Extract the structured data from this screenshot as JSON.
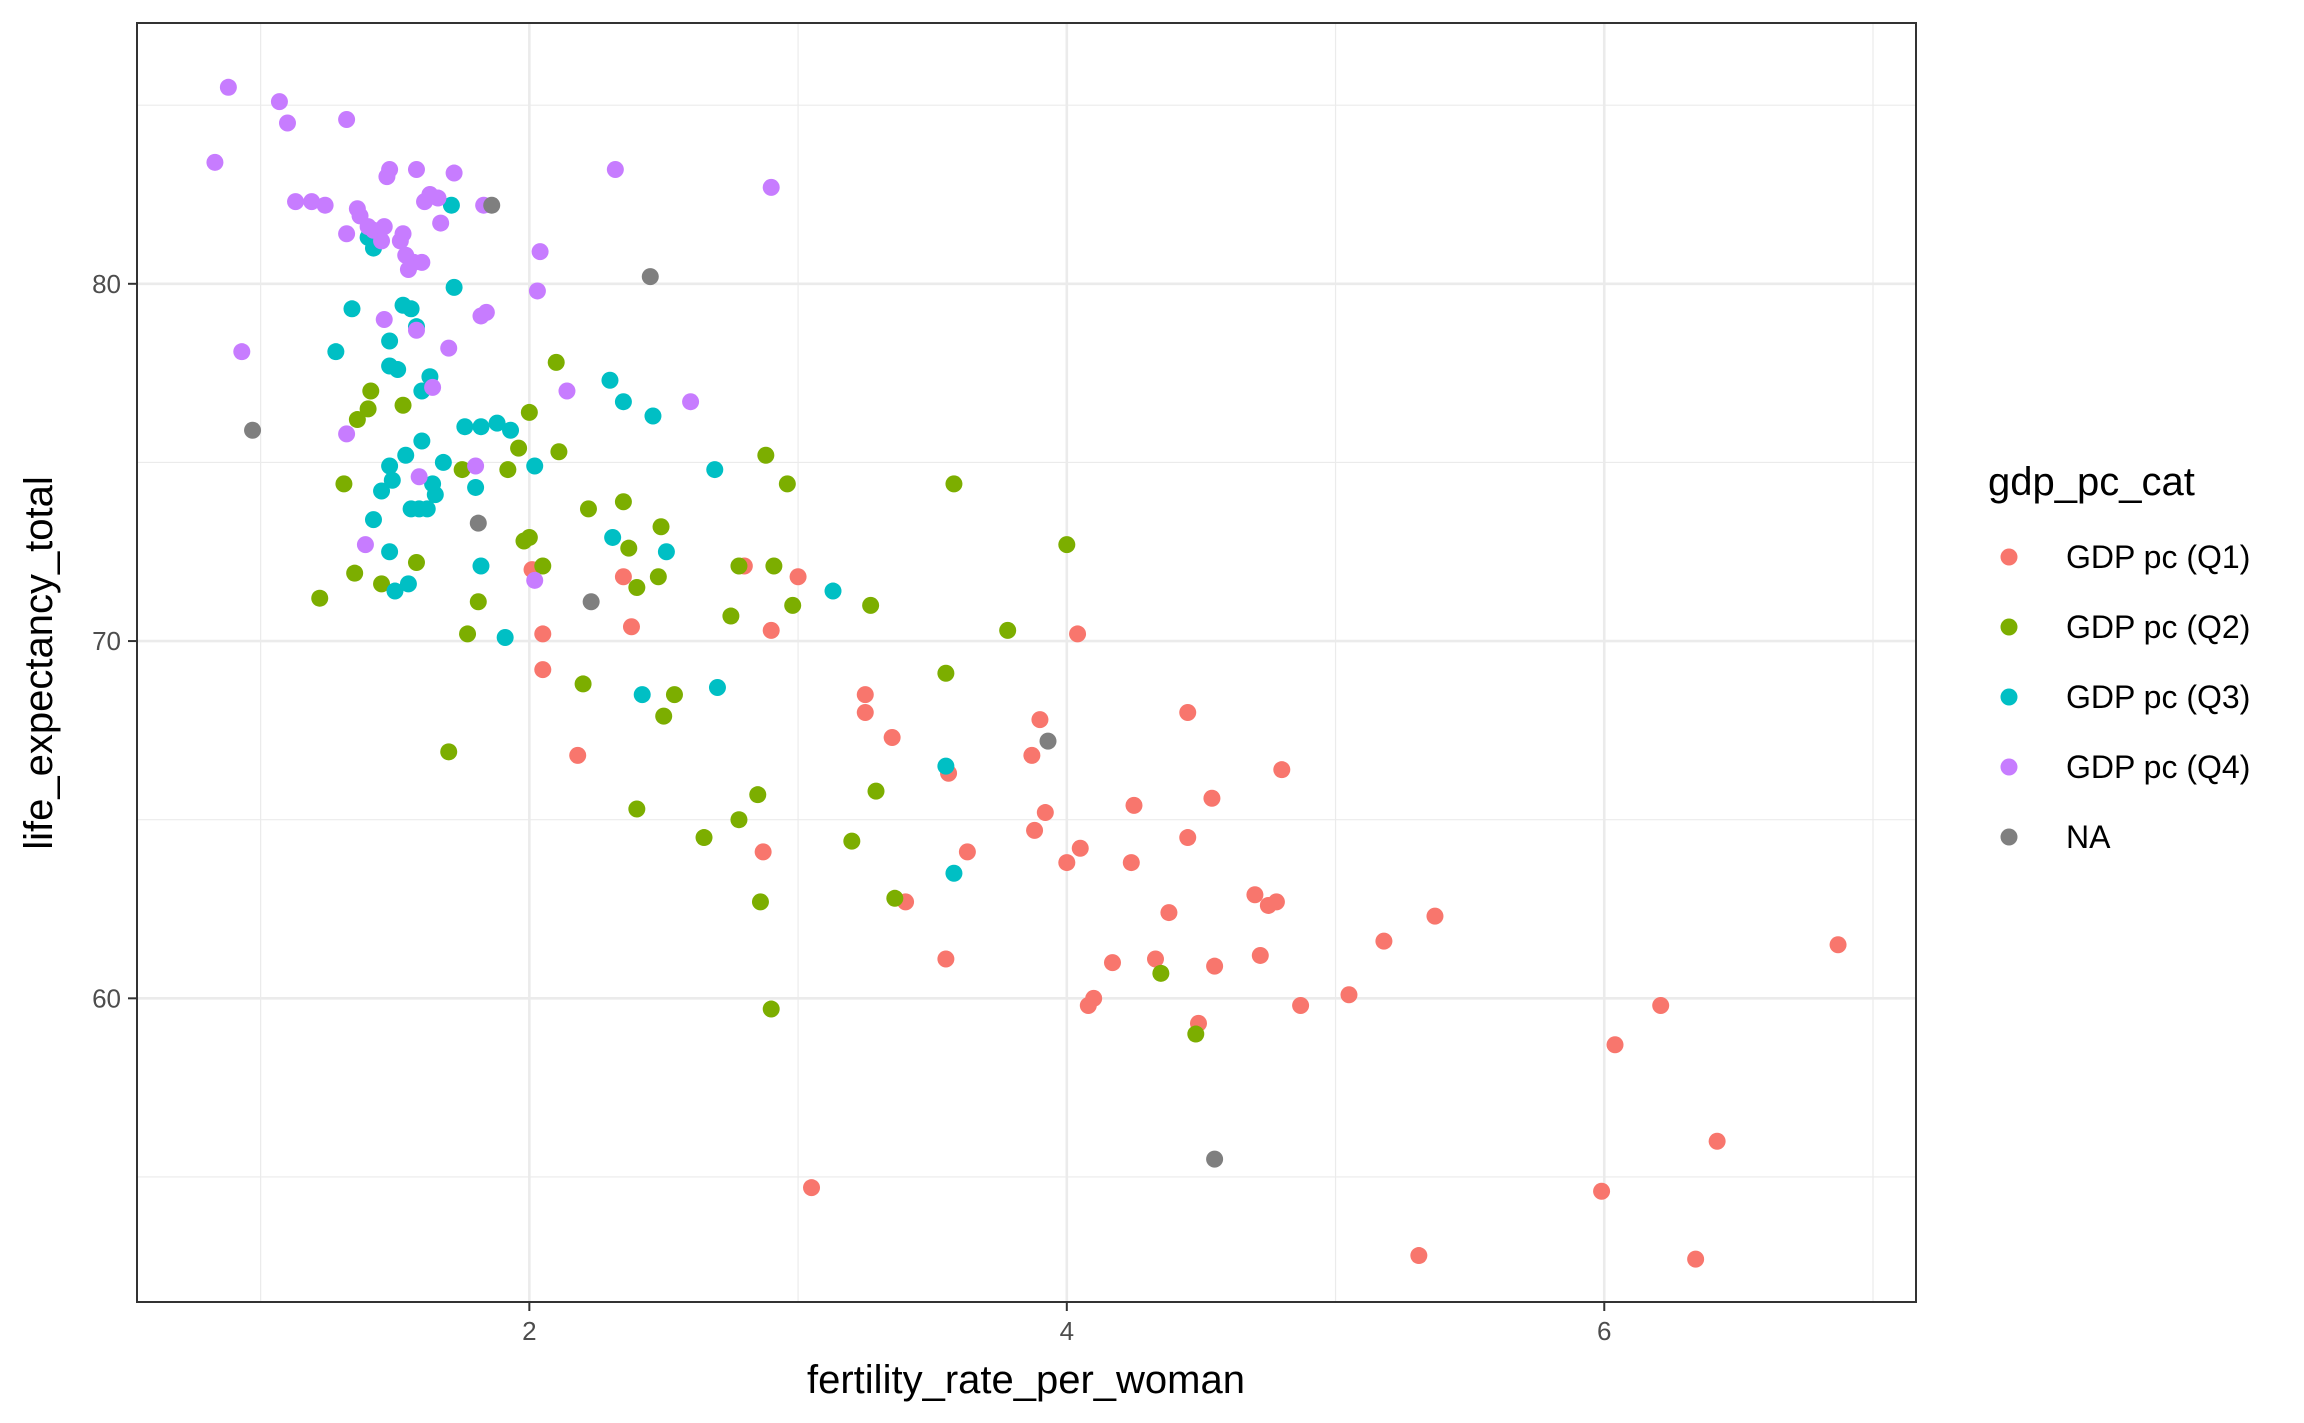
{
  "chart_data": {
    "type": "scatter",
    "xlabel": "fertility_rate_per_woman",
    "ylabel": "life_expectancy_total",
    "xlim": [
      0.54,
      7.16
    ],
    "ylim": [
      51.5,
      87.3
    ],
    "x_ticks": [
      2,
      4,
      6
    ],
    "y_ticks": [
      60,
      70,
      80
    ],
    "x_tick_labels": [
      "2",
      "4",
      "6"
    ],
    "y_tick_labels": [
      "60",
      "70",
      "80"
    ],
    "x_minor_ticks": [
      1,
      3,
      5,
      7
    ],
    "y_minor_ticks": [
      55,
      65,
      75,
      85
    ],
    "grid": true,
    "theme": "bw",
    "legend": {
      "title": "gdp_pc_cat",
      "position": "right",
      "entries": [
        "GDP pc (Q1)",
        "GDP pc (Q2)",
        "GDP pc (Q3)",
        "GDP pc (Q4)",
        "NA"
      ]
    },
    "colors": {
      "GDP pc (Q1)": "#F8766D",
      "GDP pc (Q2)": "#7CAE00",
      "GDP pc (Q3)": "#00BFC4",
      "GDP pc (Q4)": "#C77CFF",
      "NA": "#7F7F7F"
    },
    "series": [
      {
        "name": "GDP pc (Q1)",
        "points": [
          [
            2.01,
            72.0
          ],
          [
            2.05,
            70.2
          ],
          [
            2.05,
            69.2
          ],
          [
            2.18,
            66.8
          ],
          [
            2.35,
            71.8
          ],
          [
            2.38,
            70.4
          ],
          [
            2.8,
            72.1
          ],
          [
            2.87,
            64.1
          ],
          [
            2.9,
            70.3
          ],
          [
            3.0,
            71.8
          ],
          [
            3.05,
            54.7
          ],
          [
            3.25,
            68.5
          ],
          [
            3.25,
            68.0
          ],
          [
            3.35,
            67.3
          ],
          [
            3.4,
            62.7
          ],
          [
            3.55,
            61.1
          ],
          [
            3.56,
            66.3
          ],
          [
            3.63,
            64.1
          ],
          [
            3.87,
            66.8
          ],
          [
            3.88,
            64.7
          ],
          [
            3.9,
            67.8
          ],
          [
            3.92,
            65.2
          ],
          [
            4.0,
            63.8
          ],
          [
            4.04,
            70.2
          ],
          [
            4.05,
            64.2
          ],
          [
            4.08,
            59.8
          ],
          [
            4.1,
            60.0
          ],
          [
            4.17,
            61.0
          ],
          [
            4.24,
            63.8
          ],
          [
            4.25,
            65.4
          ],
          [
            4.33,
            61.1
          ],
          [
            4.38,
            62.4
          ],
          [
            4.45,
            68.0
          ],
          [
            4.45,
            64.5
          ],
          [
            4.49,
            59.3
          ],
          [
            4.54,
            65.6
          ],
          [
            4.55,
            60.9
          ],
          [
            4.7,
            62.9
          ],
          [
            4.72,
            61.2
          ],
          [
            4.75,
            62.6
          ],
          [
            4.78,
            62.7
          ],
          [
            4.8,
            66.4
          ],
          [
            4.87,
            59.8
          ],
          [
            5.05,
            60.1
          ],
          [
            5.18,
            61.6
          ],
          [
            5.31,
            52.8
          ],
          [
            5.37,
            62.3
          ],
          [
            5.99,
            54.6
          ],
          [
            6.04,
            58.7
          ],
          [
            6.21,
            59.8
          ],
          [
            6.34,
            52.7
          ],
          [
            6.42,
            56.0
          ],
          [
            6.87,
            61.5
          ]
        ]
      },
      {
        "name": "GDP pc (Q2)",
        "points": [
          [
            1.22,
            71.2
          ],
          [
            1.31,
            74.4
          ],
          [
            1.35,
            71.9
          ],
          [
            1.36,
            76.2
          ],
          [
            1.4,
            76.5
          ],
          [
            1.41,
            77.0
          ],
          [
            1.45,
            71.6
          ],
          [
            1.53,
            76.6
          ],
          [
            1.58,
            72.2
          ],
          [
            1.7,
            66.9
          ],
          [
            1.75,
            74.8
          ],
          [
            1.77,
            70.2
          ],
          [
            1.81,
            71.1
          ],
          [
            1.92,
            74.8
          ],
          [
            1.96,
            75.4
          ],
          [
            1.98,
            72.8
          ],
          [
            2.0,
            72.9
          ],
          [
            2.0,
            76.4
          ],
          [
            2.05,
            72.1
          ],
          [
            2.1,
            77.8
          ],
          [
            2.11,
            75.3
          ],
          [
            2.2,
            68.8
          ],
          [
            2.22,
            73.7
          ],
          [
            2.35,
            73.9
          ],
          [
            2.37,
            72.6
          ],
          [
            2.4,
            71.5
          ],
          [
            2.4,
            65.3
          ],
          [
            2.48,
            71.8
          ],
          [
            2.49,
            73.2
          ],
          [
            2.5,
            67.9
          ],
          [
            2.54,
            68.5
          ],
          [
            2.65,
            64.5
          ],
          [
            2.75,
            70.7
          ],
          [
            2.78,
            65.0
          ],
          [
            2.78,
            72.1
          ],
          [
            2.85,
            65.7
          ],
          [
            2.86,
            62.7
          ],
          [
            2.88,
            75.2
          ],
          [
            2.9,
            59.7
          ],
          [
            2.91,
            72.1
          ],
          [
            2.96,
            74.4
          ],
          [
            2.98,
            71.0
          ],
          [
            3.2,
            64.4
          ],
          [
            3.27,
            71.0
          ],
          [
            3.29,
            65.8
          ],
          [
            3.36,
            62.8
          ],
          [
            3.55,
            69.1
          ],
          [
            3.58,
            74.4
          ],
          [
            3.78,
            70.3
          ],
          [
            4.0,
            72.7
          ],
          [
            4.35,
            60.7
          ],
          [
            4.48,
            59.0
          ]
        ]
      },
      {
        "name": "GDP pc (Q3)",
        "points": [
          [
            1.28,
            78.1
          ],
          [
            1.34,
            79.3
          ],
          [
            1.4,
            81.3
          ],
          [
            1.42,
            81.0
          ],
          [
            1.42,
            73.4
          ],
          [
            1.45,
            74.2
          ],
          [
            1.48,
            77.7
          ],
          [
            1.48,
            78.4
          ],
          [
            1.48,
            74.9
          ],
          [
            1.48,
            72.5
          ],
          [
            1.49,
            74.5
          ],
          [
            1.5,
            71.4
          ],
          [
            1.51,
            77.6
          ],
          [
            1.53,
            79.4
          ],
          [
            1.54,
            75.2
          ],
          [
            1.55,
            71.6
          ],
          [
            1.56,
            79.3
          ],
          [
            1.56,
            73.7
          ],
          [
            1.58,
            78.8
          ],
          [
            1.59,
            73.7
          ],
          [
            1.6,
            77.0
          ],
          [
            1.6,
            75.6
          ],
          [
            1.62,
            73.7
          ],
          [
            1.63,
            77.4
          ],
          [
            1.64,
            74.4
          ],
          [
            1.65,
            74.1
          ],
          [
            1.68,
            75.0
          ],
          [
            1.71,
            82.2
          ],
          [
            1.72,
            79.9
          ],
          [
            1.76,
            76.0
          ],
          [
            1.8,
            74.3
          ],
          [
            1.82,
            76.0
          ],
          [
            1.82,
            72.1
          ],
          [
            1.88,
            76.1
          ],
          [
            1.91,
            70.1
          ],
          [
            1.93,
            75.9
          ],
          [
            2.02,
            74.9
          ],
          [
            2.3,
            77.3
          ],
          [
            2.31,
            72.9
          ],
          [
            2.35,
            76.7
          ],
          [
            2.42,
            68.5
          ],
          [
            2.46,
            76.3
          ],
          [
            2.51,
            72.5
          ],
          [
            2.69,
            74.8
          ],
          [
            2.7,
            68.7
          ],
          [
            3.13,
            71.4
          ],
          [
            3.55,
            66.5
          ],
          [
            3.58,
            63.5
          ]
        ]
      },
      {
        "name": "GDP pc (Q4)",
        "points": [
          [
            0.83,
            83.4
          ],
          [
            0.88,
            85.5
          ],
          [
            0.93,
            78.1
          ],
          [
            1.07,
            85.1
          ],
          [
            1.1,
            84.5
          ],
          [
            1.13,
            82.3
          ],
          [
            1.19,
            82.3
          ],
          [
            1.24,
            82.2
          ],
          [
            1.32,
            84.6
          ],
          [
            1.32,
            81.4
          ],
          [
            1.32,
            75.8
          ],
          [
            1.36,
            82.1
          ],
          [
            1.37,
            81.9
          ],
          [
            1.39,
            72.7
          ],
          [
            1.4,
            81.6
          ],
          [
            1.42,
            81.5
          ],
          [
            1.45,
            81.2
          ],
          [
            1.46,
            81.6
          ],
          [
            1.46,
            79.0
          ],
          [
            1.47,
            83.0
          ],
          [
            1.48,
            83.2
          ],
          [
            1.52,
            81.2
          ],
          [
            1.53,
            81.4
          ],
          [
            1.54,
            80.8
          ],
          [
            1.55,
            80.4
          ],
          [
            1.57,
            80.6
          ],
          [
            1.58,
            83.2
          ],
          [
            1.58,
            78.7
          ],
          [
            1.59,
            74.6
          ],
          [
            1.6,
            80.6
          ],
          [
            1.61,
            82.3
          ],
          [
            1.63,
            82.5
          ],
          [
            1.64,
            77.1
          ],
          [
            1.66,
            82.4
          ],
          [
            1.67,
            81.7
          ],
          [
            1.7,
            78.2
          ],
          [
            1.72,
            83.1
          ],
          [
            1.8,
            74.9
          ],
          [
            1.82,
            79.1
          ],
          [
            1.83,
            82.2
          ],
          [
            1.84,
            79.2
          ],
          [
            2.02,
            71.7
          ],
          [
            2.03,
            79.8
          ],
          [
            2.04,
            80.9
          ],
          [
            2.14,
            77.0
          ],
          [
            2.32,
            83.2
          ],
          [
            2.6,
            76.7
          ],
          [
            2.9,
            82.7
          ]
        ]
      },
      {
        "name": "NA",
        "points": [
          [
            0.97,
            75.9
          ],
          [
            1.81,
            73.3
          ],
          [
            1.86,
            82.2
          ],
          [
            2.23,
            71.1
          ],
          [
            2.45,
            80.2
          ],
          [
            3.93,
            67.2
          ],
          [
            4.55,
            55.5
          ]
        ]
      }
    ]
  }
}
